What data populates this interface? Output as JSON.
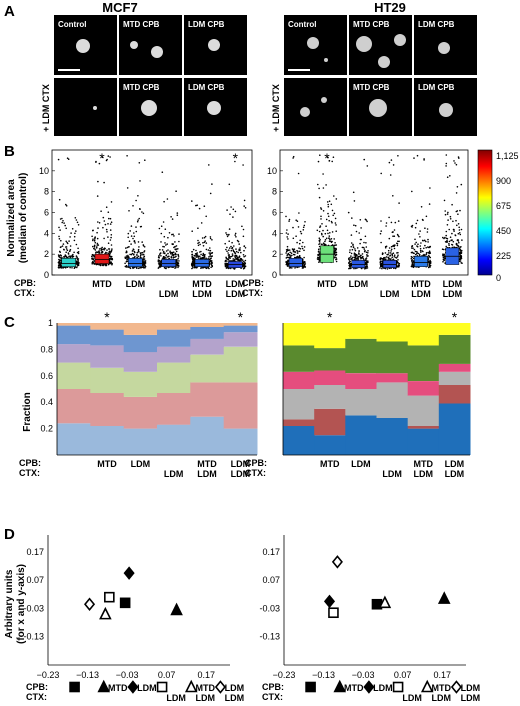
{
  "panels": {
    "A": {
      "label": "A",
      "left_title": "MCF7",
      "right_title": "HT29",
      "left_row1": [
        "Control",
        "MTD CPB",
        "LDM CPB"
      ],
      "left_row2": [
        "MTD CPB",
        "LDM CPB"
      ],
      "right_row1": [
        "Control",
        "MTD CPB",
        "LDM CPB"
      ],
      "right_row2": [
        "MTD CPB",
        "LDM CPB"
      ],
      "side_label": "+ LDM CTX"
    },
    "B": {
      "label": "B",
      "ylabel_1": "Normalized area",
      "ylabel_2": "(median of control)",
      "colorbar_ticks": [
        "1,125",
        "900",
        "675",
        "450",
        "225",
        "0"
      ],
      "star": "*"
    },
    "C": {
      "label": "C",
      "ylabel": "Fraction",
      "star": "*"
    },
    "D": {
      "label": "D",
      "ylabel_1": "Arbitrary units",
      "ylabel_2": "(for x and y-axis)"
    },
    "row_labels": {
      "cpb": "CPB:",
      "ctx": "CTX:"
    },
    "conditions": [
      {
        "cpb": "",
        "ctx": ""
      },
      {
        "cpb": "MTD",
        "ctx": ""
      },
      {
        "cpb": "LDM",
        "ctx": ""
      },
      {
        "cpb": "",
        "ctx": "LDM"
      },
      {
        "cpb": "MTD",
        "ctx": "LDM"
      },
      {
        "cpb": "LDM",
        "ctx": "LDM"
      }
    ]
  },
  "chart_data": [
    {
      "id": "B-left",
      "type": "box",
      "title": "",
      "ylim": [
        0,
        12
      ],
      "yticks": [
        0,
        2,
        4,
        6,
        8,
        10
      ],
      "categories": [
        "1",
        "2",
        "3",
        "4",
        "5",
        "6"
      ],
      "medians": [
        1.1,
        1.5,
        1.1,
        1.1,
        1.1,
        1.0
      ],
      "q1": [
        0.8,
        1.1,
        0.8,
        0.8,
        0.8,
        0.7
      ],
      "q3": [
        1.6,
        2.0,
        1.6,
        1.5,
        1.5,
        1.3
      ],
      "box_colors": [
        "#2bd1c9",
        "#e01818",
        "#2a73e8",
        "#2a5ee0",
        "#2a6ae4",
        "#2a48dc"
      ],
      "significant": [
        false,
        true,
        false,
        false,
        false,
        true
      ]
    },
    {
      "id": "B-right",
      "type": "box",
      "title": "",
      "ylim": [
        0,
        12
      ],
      "yticks": [
        0,
        2,
        4,
        6,
        8,
        10
      ],
      "categories": [
        "1",
        "2",
        "3",
        "4",
        "5",
        "6"
      ],
      "medians": [
        1.1,
        2.0,
        1.0,
        1.0,
        1.2,
        1.8
      ],
      "q1": [
        0.8,
        1.2,
        0.7,
        0.7,
        0.8,
        1.0
      ],
      "q3": [
        1.6,
        2.8,
        1.4,
        1.4,
        1.8,
        2.6
      ],
      "box_colors": [
        "#2a60e4",
        "#6ce07a",
        "#2a58e0",
        "#2a52de",
        "#2a7ae8",
        "#2a62e4"
      ],
      "significant": [
        false,
        true,
        false,
        false,
        false,
        false
      ]
    },
    {
      "id": "C-left",
      "type": "stacked-area",
      "ylim": [
        0,
        1
      ],
      "yticks": [
        0.2,
        0.4,
        0.6,
        0.8,
        1
      ],
      "colors": [
        "#9ab9dc",
        "#dc9a9a",
        "#c5d89f",
        "#b4a3cc",
        "#6e96d0",
        "#f2b88e"
      ],
      "cumulative": [
        [
          0.24,
          0.5,
          0.7,
          0.84,
          0.98,
          1.0
        ],
        [
          0.22,
          0.47,
          0.66,
          0.83,
          0.95,
          1.0
        ],
        [
          0.2,
          0.44,
          0.63,
          0.78,
          0.91,
          1.0
        ],
        [
          0.23,
          0.47,
          0.7,
          0.82,
          0.95,
          1.0
        ],
        [
          0.29,
          0.55,
          0.76,
          0.88,
          0.97,
          1.0
        ],
        [
          0.2,
          0.55,
          0.82,
          0.93,
          0.98,
          1.0
        ]
      ],
      "significant": [
        false,
        true,
        false,
        false,
        false,
        true
      ]
    },
    {
      "id": "C-right",
      "type": "stacked-area",
      "ylim": [
        0,
        1
      ],
      "yticks": [
        0.2,
        0.4,
        0.6,
        0.8,
        1
      ],
      "colors": [
        "#1f6fba",
        "#b35452",
        "#b3b3b3",
        "#e54d7e",
        "#5a8a2e",
        "#ffff22"
      ],
      "cumulative": [
        [
          0.22,
          0.27,
          0.5,
          0.63,
          0.83,
          1.0
        ],
        [
          0.15,
          0.35,
          0.53,
          0.64,
          0.81,
          1.0
        ],
        [
          0.3,
          0.3,
          0.5,
          0.62,
          0.88,
          1.0
        ],
        [
          0.28,
          0.28,
          0.55,
          0.62,
          0.86,
          1.0
        ],
        [
          0.2,
          0.22,
          0.45,
          0.56,
          0.83,
          1.0
        ],
        [
          0.39,
          0.53,
          0.63,
          0.69,
          0.91,
          1.0
        ]
      ],
      "significant": [
        false,
        true,
        false,
        false,
        false,
        true
      ]
    },
    {
      "id": "D-left",
      "type": "scatter",
      "xlim": [
        -0.23,
        0.23
      ],
      "ylim": [
        -0.23,
        0.23
      ],
      "xticks": [
        -0.23,
        -0.13,
        -0.03,
        0.07,
        0.17
      ],
      "yticks": [
        -0.23,
        -0.13,
        -0.03,
        0.07,
        0.17
      ],
      "points": [
        {
          "x": -0.035,
          "y": -0.01,
          "marker": "filled-square"
        },
        {
          "x": 0.095,
          "y": -0.035,
          "marker": "filled-triangle"
        },
        {
          "x": -0.025,
          "y": 0.095,
          "marker": "filled-diamond"
        },
        {
          "x": -0.075,
          "y": 0.01,
          "marker": "open-square"
        },
        {
          "x": -0.085,
          "y": -0.05,
          "marker": "open-triangle"
        },
        {
          "x": -0.125,
          "y": -0.015,
          "marker": "open-diamond"
        }
      ]
    },
    {
      "id": "D-right",
      "type": "scatter",
      "xlim": [
        -0.23,
        0.23
      ],
      "ylim": [
        -0.23,
        0.23
      ],
      "xticks": [
        -0.23,
        -0.13,
        -0.03,
        0.07,
        0.17
      ],
      "yticks": [
        -0.23,
        -0.13,
        -0.03,
        0.07,
        0.17
      ],
      "points": [
        {
          "x": 0.005,
          "y": -0.015,
          "marker": "filled-square"
        },
        {
          "x": 0.175,
          "y": 0.005,
          "marker": "filled-triangle"
        },
        {
          "x": -0.115,
          "y": -0.005,
          "marker": "filled-diamond"
        },
        {
          "x": -0.105,
          "y": -0.045,
          "marker": "open-square"
        },
        {
          "x": 0.025,
          "y": -0.01,
          "marker": "open-triangle"
        },
        {
          "x": -0.095,
          "y": 0.135,
          "marker": "open-diamond"
        }
      ]
    }
  ]
}
